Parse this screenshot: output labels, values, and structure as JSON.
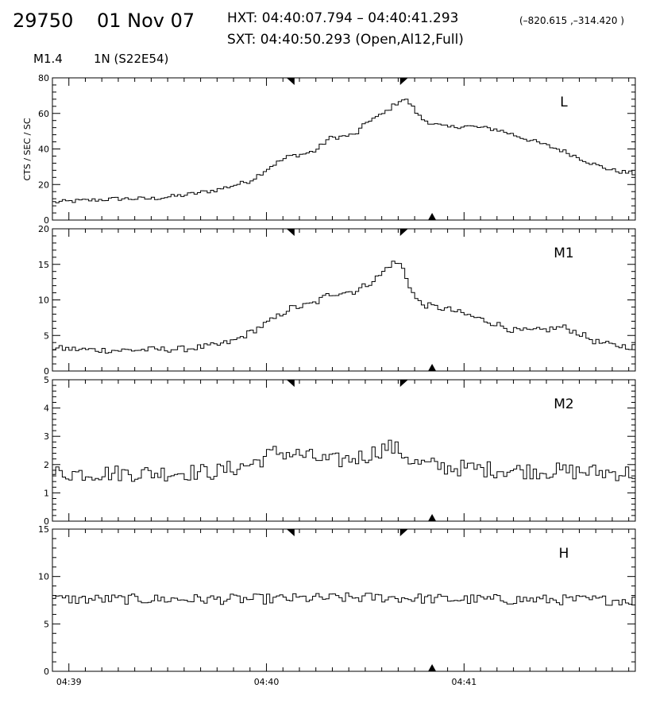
{
  "header": {
    "flare_id": "29750",
    "date": "01 Nov 07",
    "hxt_label": "HXT: 04:40:07.794 – 04:40:41.293",
    "coordinates": "(–820.615 ,–314.420 )",
    "sxt_label": "SXT: 04:40:50.293 (Open,Al12,Full)",
    "goes_class": "M1.4",
    "location": "1N (S22E54)"
  },
  "chart_data": {
    "type": "line",
    "x_axis": {
      "start": "04:38:55",
      "end": "04:41:52",
      "tick_labels": [
        "04:39",
        "04:40",
        "04:41"
      ],
      "tick_seconds_from_start": [
        5,
        65,
        125
      ]
    },
    "ylabel": "CTS / SEC / SC",
    "interval_markers": {
      "hxt_start": "04:40:07.794",
      "hxt_end": "04:40:41.293",
      "sxt_time": "04:40:50.293"
    },
    "panels": [
      {
        "name": "L",
        "ylim": [
          0,
          80
        ],
        "yticks": [
          0,
          20,
          40,
          60,
          80
        ],
        "anchors_t": [
          0,
          10,
          20,
          30,
          40,
          50,
          60,
          67,
          72,
          76,
          80,
          84,
          88,
          92,
          96,
          100,
          102,
          104,
          106,
          108,
          110,
          112,
          116,
          120,
          125,
          130,
          135,
          140,
          145,
          150,
          155,
          160,
          165,
          170,
          177
        ],
        "anchors_v": [
          10,
          11,
          12,
          12,
          14,
          17,
          22,
          31,
          36,
          37,
          39,
          46,
          47,
          48,
          56,
          59,
          62,
          65,
          68,
          67,
          62,
          57,
          54,
          52,
          53,
          52,
          51,
          48,
          45,
          42,
          39,
          35,
          31,
          28,
          26
        ],
        "noise": 1.2
      },
      {
        "name": "M1",
        "ylim": [
          0,
          20
        ],
        "yticks": [
          0,
          5,
          10,
          15,
          20
        ],
        "anchors_t": [
          0,
          10,
          20,
          30,
          40,
          50,
          55,
          60,
          67,
          72,
          76,
          80,
          84,
          88,
          92,
          96,
          100,
          102,
          104,
          106,
          108,
          110,
          112,
          116,
          120,
          125,
          130,
          135,
          140,
          145,
          150,
          155,
          160,
          165,
          170,
          177
        ],
        "anchors_v": [
          3.2,
          3.0,
          2.9,
          3.0,
          3.1,
          3.6,
          4.2,
          5.4,
          7.2,
          8.8,
          9.1,
          9.6,
          10.8,
          11.1,
          11.2,
          12.3,
          13.6,
          14.8,
          15.3,
          14.9,
          12.6,
          10.4,
          9.4,
          9.0,
          8.7,
          8.0,
          7.3,
          6.6,
          5.7,
          5.6,
          5.8,
          6.2,
          5.3,
          4.1,
          3.6,
          3.4
        ],
        "noise": 0.45
      },
      {
        "name": "M2",
        "ylim": [
          0,
          5
        ],
        "yticks": [
          0,
          1,
          2,
          3,
          4,
          5
        ],
        "anchors_t": [
          0,
          30,
          50,
          60,
          68,
          75,
          85,
          95,
          102,
          106,
          110,
          120,
          140,
          160,
          177
        ],
        "anchors_v": [
          1.7,
          1.7,
          1.75,
          2.0,
          2.45,
          2.35,
          2.1,
          2.3,
          2.65,
          2.45,
          2.05,
          1.9,
          1.8,
          1.75,
          1.7
        ],
        "noise": 0.3
      },
      {
        "name": "H",
        "ylim": [
          0,
          15
        ],
        "yticks": [
          0,
          5,
          10,
          15
        ],
        "anchors_t": [
          0,
          60,
          100,
          120,
          177
        ],
        "anchors_v": [
          7.6,
          7.6,
          7.8,
          7.6,
          7.5
        ],
        "noise": 0.55
      }
    ]
  }
}
